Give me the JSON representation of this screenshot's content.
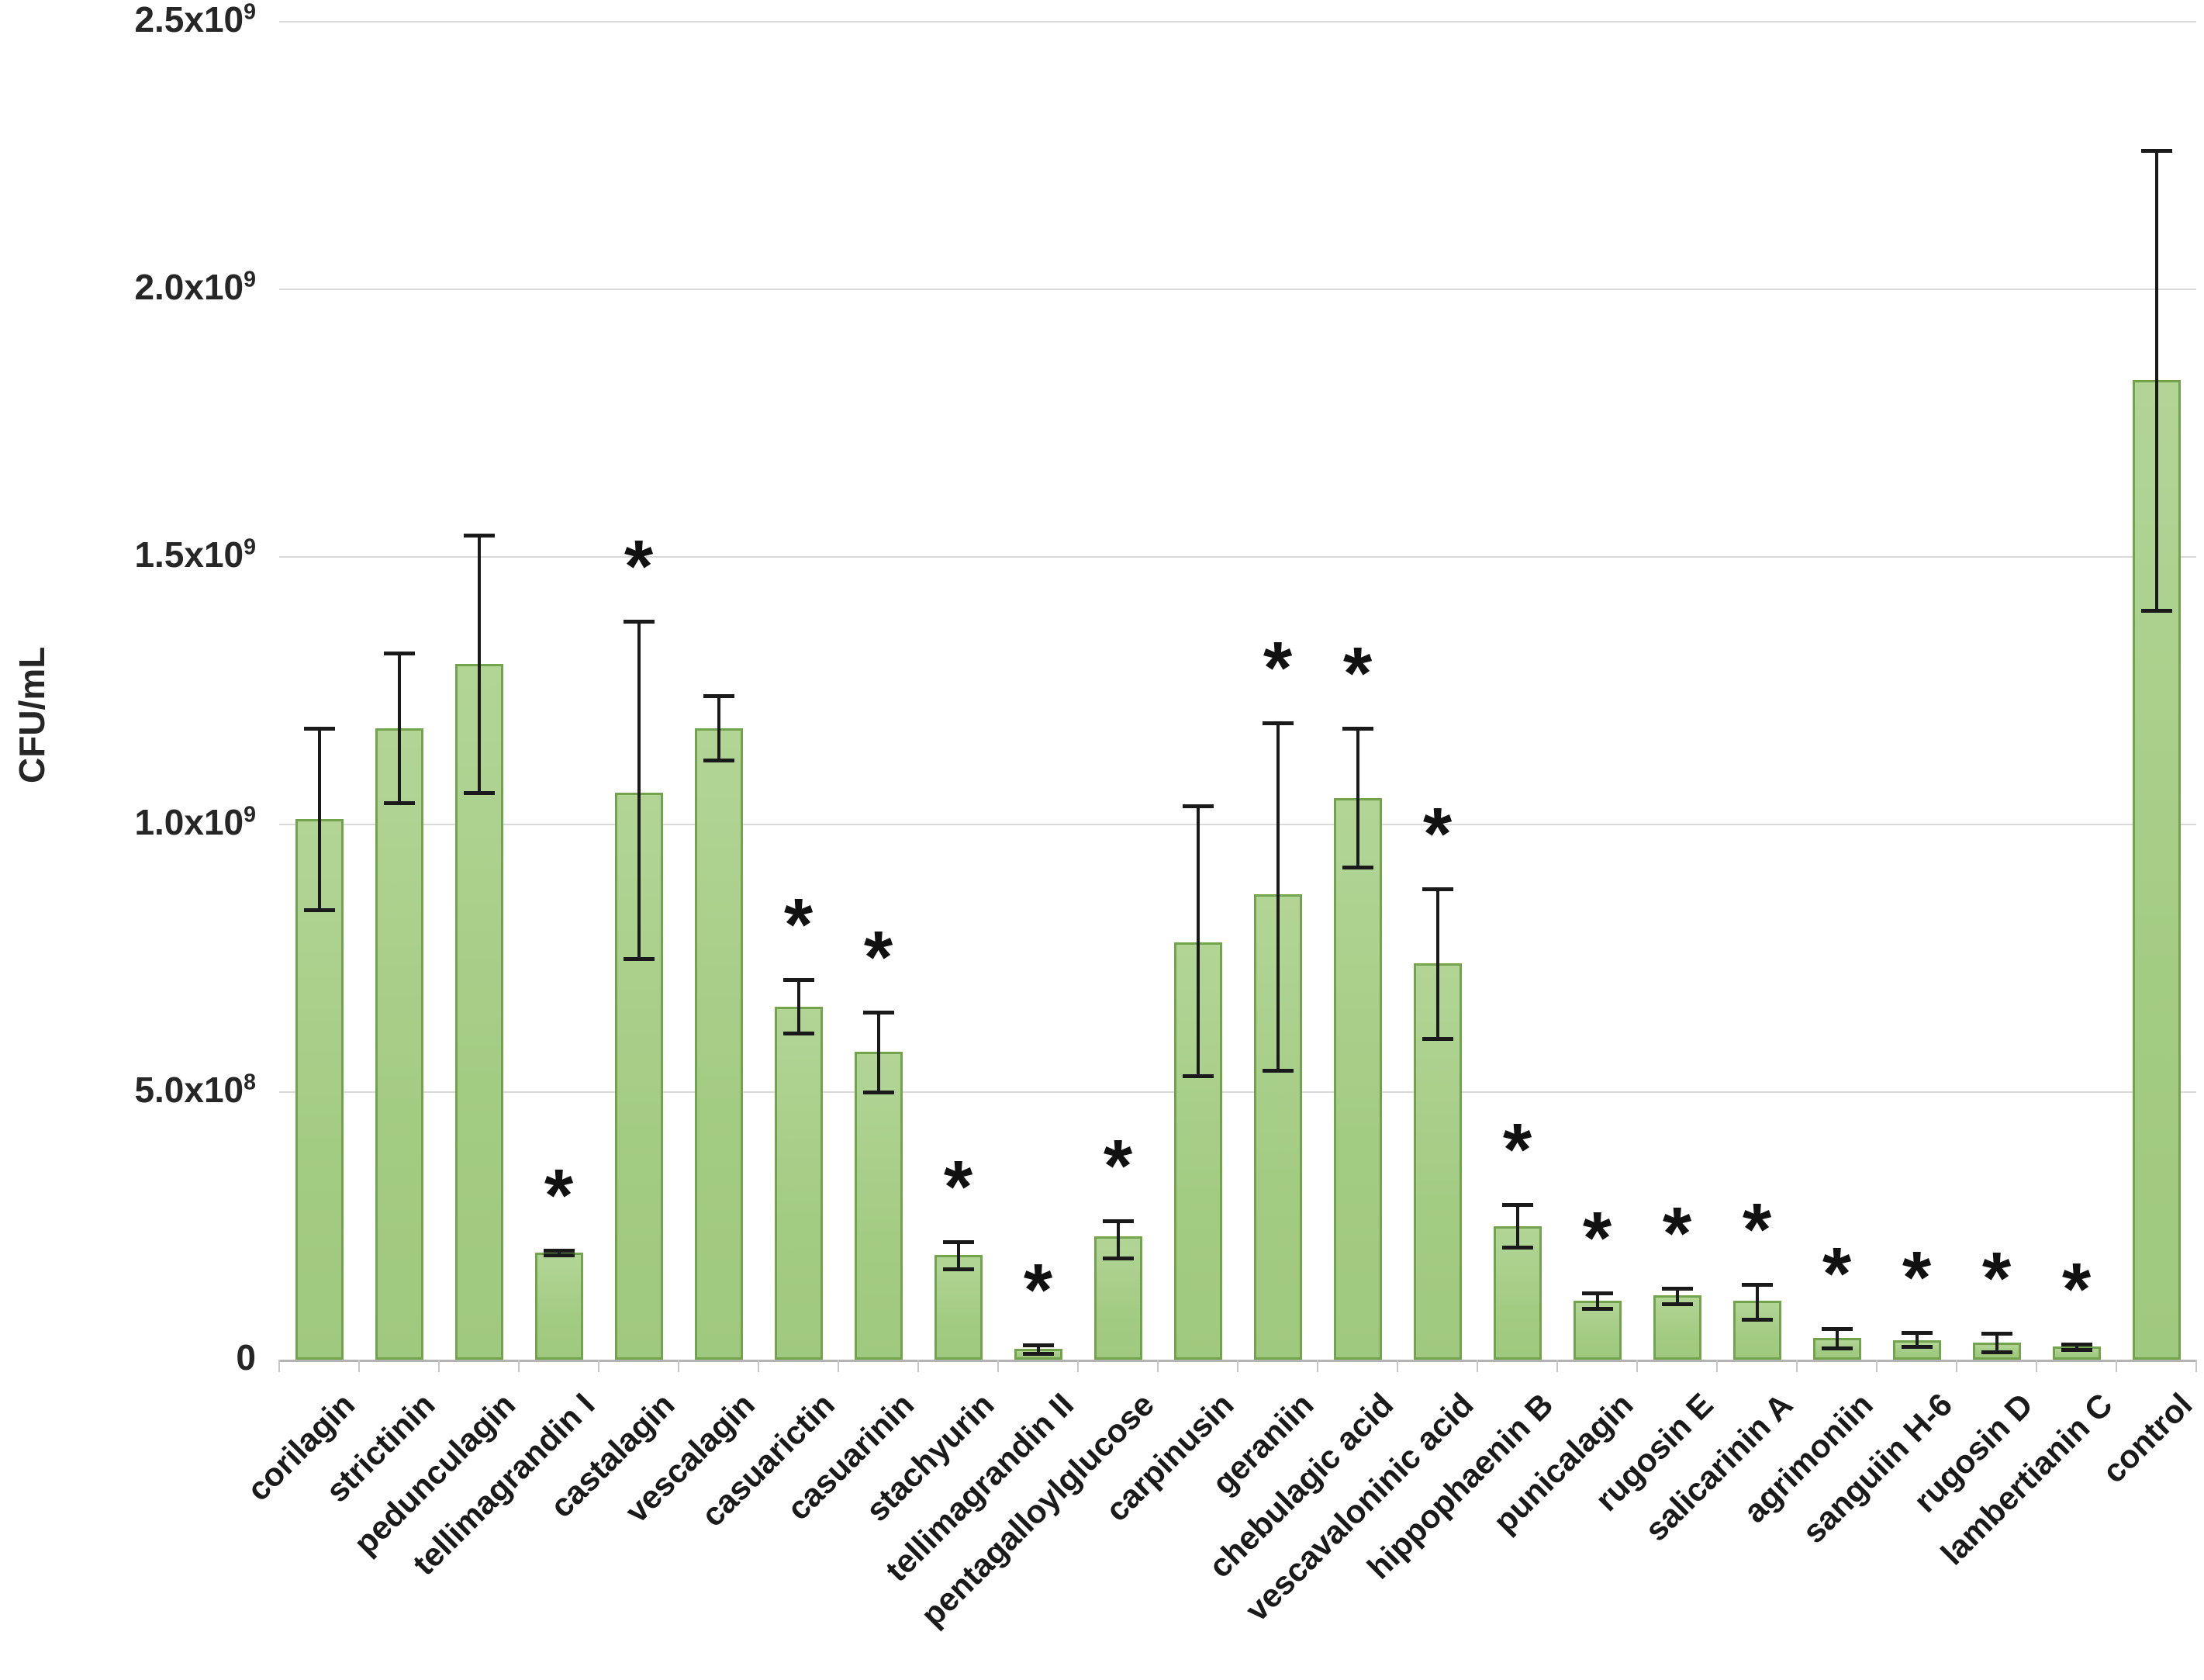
{
  "chart_data": {
    "type": "bar",
    "title": "",
    "xlabel": "",
    "ylabel": "CFU/mL",
    "ylim": [
      0,
      2500000000
    ],
    "grid": true,
    "legend": false,
    "significance_marker": "*",
    "colors": {
      "bar_fill": "#a5cd86",
      "bar_border": "#74a34e",
      "gridline": "#d9d9d9",
      "axis_line": "#b3b3b3",
      "error_bar": "#1a1a1a",
      "text": "#262626",
      "background": "#ffffff"
    },
    "y_ticks": [
      {
        "label": "0",
        "sup": "",
        "value": 0
      },
      {
        "label": "5.0x10",
        "sup": "8",
        "value": 500000000
      },
      {
        "label": "1.0x10",
        "sup": "9",
        "value": 1000000000
      },
      {
        "label": "1.5x10",
        "sup": "9",
        "value": 1500000000
      },
      {
        "label": "2.0x10",
        "sup": "9",
        "value": 2000000000
      },
      {
        "label": "2.5x10",
        "sup": "9",
        "value": 2500000000
      }
    ],
    "categories": [
      "corilagin",
      "strictinin",
      "pedunculagin",
      "tellimagrandin I",
      "castalagin",
      "vescalagin",
      "casuarictin",
      "casuarinin",
      "stachyurin",
      "tellimagrandin II",
      "pentagalloylglucose",
      "carpinusin",
      "geraniin",
      "chebulagic acid",
      "vescavaloninic acid",
      "hippophaenin B",
      "punicalagin",
      "rugosin E",
      "salicarinin A",
      "agrimoniin",
      "sanguiin H-6",
      "rugosin D",
      "lambertianin C",
      "control"
    ],
    "values": [
      1010000000,
      1180000000,
      1300000000,
      200000000,
      1060000000,
      1180000000,
      660000000,
      575000000,
      195000000,
      20000000,
      230000000,
      780000000,
      870000000,
      1050000000,
      740000000,
      250000000,
      110000000,
      120000000,
      110000000,
      40000000,
      36000000,
      32000000,
      24000000,
      1830000000
    ],
    "error_high": [
      1180000000,
      1320000000,
      1540000000,
      205000000,
      1380000000,
      1240000000,
      710000000,
      650000000,
      220000000,
      28000000,
      260000000,
      1035000000,
      1190000000,
      1180000000,
      880000000,
      290000000,
      125000000,
      133000000,
      140000000,
      58000000,
      51000000,
      49000000,
      29000000,
      2260000000
    ],
    "error_low": [
      840000000,
      1040000000,
      1060000000,
      195000000,
      750000000,
      1120000000,
      610000000,
      500000000,
      170000000,
      12000000,
      190000000,
      530000000,
      540000000,
      920000000,
      600000000,
      210000000,
      95000000,
      105000000,
      75000000,
      22000000,
      24000000,
      15000000,
      19000000,
      1400000000
    ],
    "significant": [
      false,
      false,
      false,
      true,
      true,
      false,
      true,
      true,
      true,
      true,
      true,
      false,
      true,
      true,
      true,
      true,
      true,
      true,
      true,
      true,
      true,
      true,
      true,
      false
    ]
  }
}
